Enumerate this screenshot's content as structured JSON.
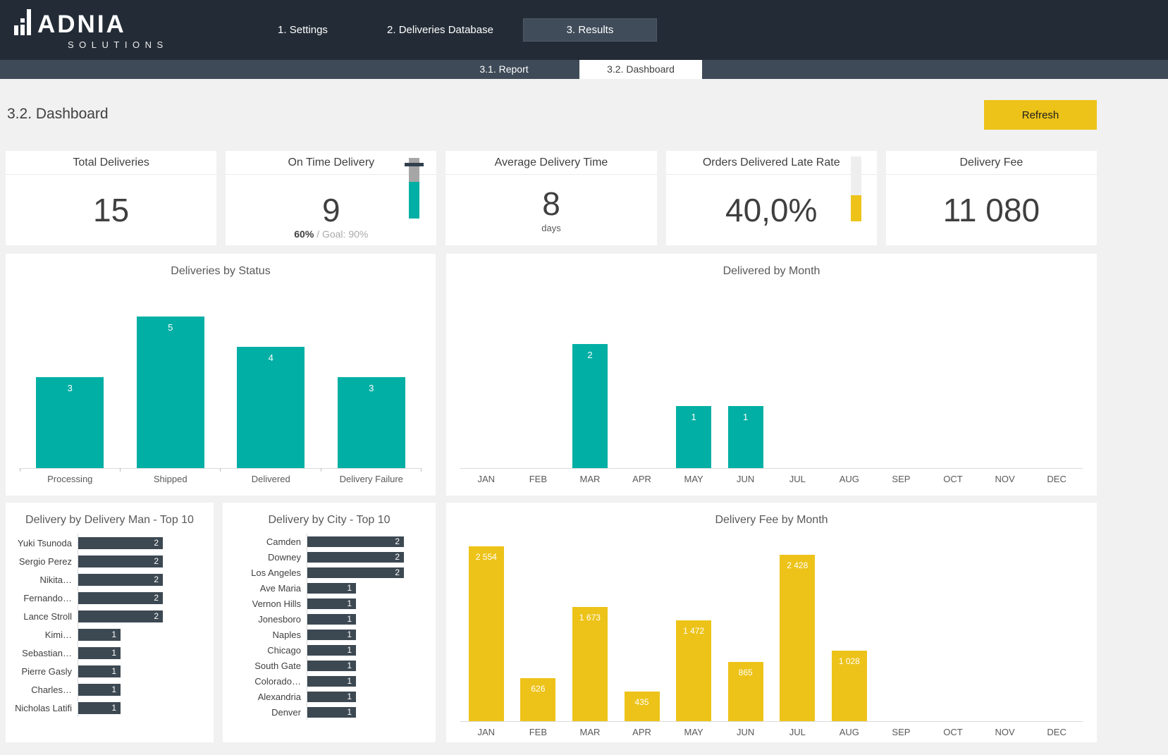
{
  "header": {
    "brand": {
      "name": "ADNIA",
      "subtitle": "SOLUTIONS"
    },
    "nav": [
      {
        "label": "1. Settings",
        "active": false
      },
      {
        "label": "2. Deliveries Database",
        "active": false
      },
      {
        "label": "3. Results",
        "active": true
      }
    ]
  },
  "subnav": [
    {
      "label": "3.1. Report",
      "active": false
    },
    {
      "label": "3.2. Dashboard",
      "active": true
    }
  ],
  "page": {
    "title": "3.2. Dashboard",
    "refresh_label": "Refresh"
  },
  "kpis": [
    {
      "title": "Total Deliveries",
      "value": "15"
    },
    {
      "title": "On Time Delivery",
      "value": "9",
      "sub_value": "60%",
      "sub_goal": "/ Goal: 90%",
      "gauge": {
        "value_pct": 60,
        "goal_pct": 90,
        "fill_color": "#02AFA4",
        "track_color": "#A6A6A6",
        "marker_color": "#31404E"
      }
    },
    {
      "title": "Average Delivery Time",
      "value": "8",
      "unit": "days"
    },
    {
      "title": "Orders Delivered Late Rate",
      "value": "40,0%",
      "gauge": {
        "value_pct": 40,
        "fill_color": "#EDC319",
        "track_color": "#EEEEEE"
      }
    },
    {
      "title": "Delivery Fee",
      "value": "11 080"
    }
  ],
  "colors": {
    "header_bg": "#232C36",
    "subnav_bg": "#3E4A57",
    "accent_teal": "#02AFA4",
    "accent_yellow": "#EDC319",
    "dark_bar": "#3C4852",
    "page_bg": "#F1F1F1"
  },
  "chart_data": [
    {
      "id": "status",
      "type": "bar",
      "title": "Deliveries by Status",
      "categories": [
        "Processing",
        "Shipped",
        "Delivered",
        "Delivery Failure"
      ],
      "values": [
        3,
        5,
        4,
        3
      ],
      "bar_color": "#02AFA4",
      "label_color": "#FFFFFF",
      "ticks": true,
      "xlabel": "",
      "ylabel": "",
      "ylim": [
        0,
        5
      ],
      "grid": false,
      "legend": "none"
    },
    {
      "id": "delivered_by_month",
      "type": "bar",
      "title": "Delivered by Month",
      "categories": [
        "JAN",
        "FEB",
        "MAR",
        "APR",
        "MAY",
        "JUN",
        "JUL",
        "AUG",
        "SEP",
        "OCT",
        "NOV",
        "DEC"
      ],
      "values": [
        0,
        0,
        2,
        0,
        1,
        1,
        0,
        0,
        0,
        0,
        0,
        0
      ],
      "bar_color": "#02AFA4",
      "label_color": "#FFFFFF",
      "ticks": false,
      "xlabel": "",
      "ylabel": "",
      "ylim": [
        0,
        2
      ],
      "grid": false,
      "legend": "none"
    },
    {
      "id": "delivery_man",
      "type": "hbar",
      "title": "Delivery by Delivery Man - Top 10",
      "categories": [
        "Yuki Tsunoda",
        "Sergio Perez",
        "Nikita…",
        "Fernando…",
        "Lance Stroll",
        "Kimi…",
        "Sebastian…",
        "Pierre Gasly",
        "Charles…",
        "Nicholas Latifi"
      ],
      "values": [
        2,
        2,
        2,
        2,
        2,
        1,
        1,
        1,
        1,
        1
      ],
      "bar_color": "#3C4852",
      "label_color": "#FFFFFF",
      "xlabel": "",
      "ylabel": "",
      "xlim": [
        0,
        2
      ],
      "grid": false,
      "legend": "none"
    },
    {
      "id": "city",
      "type": "hbar",
      "title": "Delivery by City - Top 10",
      "categories": [
        "Camden",
        "Downey",
        "Los Angeles",
        "Ave Maria",
        "Vernon Hills",
        "Jonesboro",
        "Naples",
        "Chicago",
        "South Gate",
        "Colorado…",
        "Alexandria",
        "Denver"
      ],
      "values": [
        2,
        2,
        2,
        1,
        1,
        1,
        1,
        1,
        1,
        1,
        1,
        1
      ],
      "bar_color": "#3C4852",
      "label_color": "#FFFFFF",
      "xlabel": "",
      "ylabel": "",
      "xlim": [
        0,
        2
      ],
      "grid": false,
      "legend": "none"
    },
    {
      "id": "fee_by_month",
      "type": "bar",
      "title": "Delivery Fee by Month",
      "categories": [
        "JAN",
        "FEB",
        "MAR",
        "APR",
        "MAY",
        "JUN",
        "JUL",
        "AUG",
        "SEP",
        "OCT",
        "NOV",
        "DEC"
      ],
      "values": [
        2554,
        626,
        1673,
        435,
        1472,
        865,
        2428,
        1028,
        0,
        0,
        0,
        0
      ],
      "labels": [
        "2 554",
        "626",
        "1 673",
        "435",
        "1 472",
        "865",
        "2 428",
        "1 028",
        "",
        "",
        "",
        ""
      ],
      "bar_color": "#EDC319",
      "label_color": "#FFFFFF",
      "ticks": false,
      "xlabel": "",
      "ylabel": "",
      "ylim": [
        0,
        2554
      ],
      "grid": false,
      "legend": "none"
    }
  ]
}
